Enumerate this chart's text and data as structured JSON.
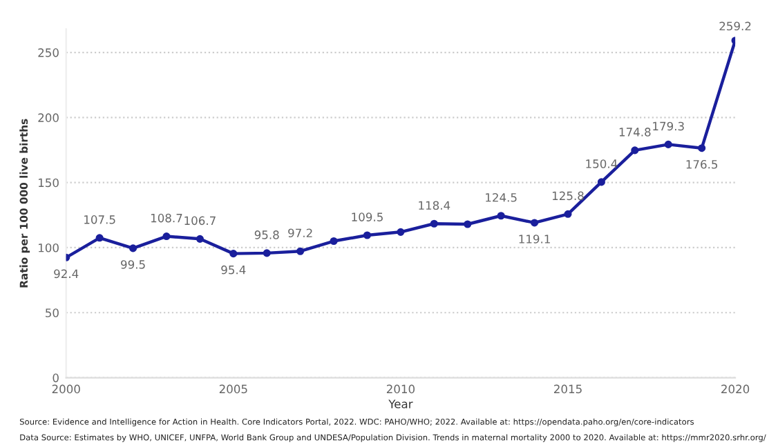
{
  "chart_data": {
    "type": "line",
    "xlabel": "Year",
    "ylabel": "Ratio per 100 000 live births",
    "x": [
      2000,
      2001,
      2002,
      2003,
      2004,
      2005,
      2006,
      2007,
      2008,
      2009,
      2010,
      2011,
      2012,
      2013,
      2014,
      2015,
      2016,
      2017,
      2018,
      2019,
      2020
    ],
    "series": [
      {
        "color": "#1a1f9c",
        "values": [
          92.4,
          107.5,
          99.5,
          108.7,
          106.7,
          95.4,
          95.8,
          97.2,
          105,
          109.5,
          112,
          118.4,
          118,
          124.5,
          119.1,
          125.8,
          150.4,
          174.8,
          179.3,
          176.5,
          259.2
        ],
        "value_labels": [
          "92.4",
          "107.5",
          "99.5",
          "108.7",
          "106.7",
          "95.4",
          "95.8",
          "97.2",
          null,
          "109.5",
          null,
          "118.4",
          null,
          "124.5",
          "119.1",
          "125.8",
          "150.4",
          "174.8",
          "179.3",
          "176.5",
          "259.2"
        ]
      }
    ],
    "xlim": [
      2000,
      2020
    ],
    "xticks": [
      2000,
      2005,
      2010,
      2015,
      2020
    ],
    "ylim": [
      0,
      268
    ],
    "yticks": [
      0,
      50,
      100,
      150,
      200,
      250
    ],
    "grid": "y",
    "marker": "circle",
    "line_style": "solid",
    "annotations": [
      "Source: Evidence and Intelligence for Action in Health. Core Indicators Portal, 2022. WDC: PAHO/WHO; 2022. Available at: https://opendata.paho.org/en/core-indicators",
      "Data Source: Estimates by WHO, UNICEF, UNFPA, World Bank Group and UNDESA/Population Division. Trends in maternal mortality 2000 to 2020. Available at: https://mmr2020.srhr.org/"
    ]
  }
}
